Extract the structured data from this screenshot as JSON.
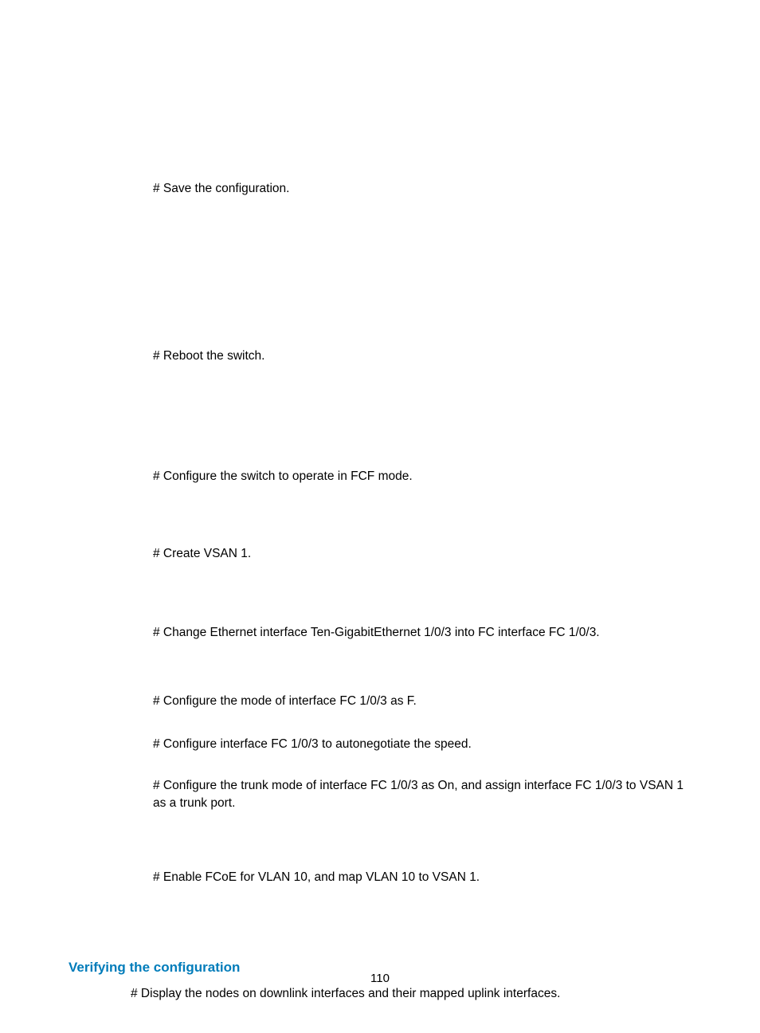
{
  "body": {
    "p1": "# Save the configuration.",
    "p2": "# Reboot the switch.",
    "p3": "# Configure the switch to operate in FCF mode.",
    "p4": "# Create VSAN 1.",
    "p5": "# Change Ethernet interface Ten-GigabitEthernet 1/0/3 into FC interface FC 1/0/3.",
    "p6": "# Configure the mode of interface FC 1/0/3 as F.",
    "p7": "# Configure interface FC 1/0/3 to autonegotiate the speed.",
    "p8": "# Configure the trunk mode of interface FC 1/0/3 as On, and assign interface FC 1/0/3 to VSAN 1 as a trunk port.",
    "p9": "# Enable FCoE for VLAN 10, and map VLAN 10 to VSAN 1.",
    "heading": "Verifying the configuration",
    "p10": "# Display the nodes on downlink interfaces and their mapped uplink interfaces."
  },
  "page_number": "110",
  "colors": {
    "text": "#000000",
    "heading": "#007cba",
    "background": "#ffffff"
  },
  "typography": {
    "body_fontsize": 15.5,
    "heading_fontsize": 17,
    "heading_weight": 700,
    "font_family": "Arial"
  }
}
